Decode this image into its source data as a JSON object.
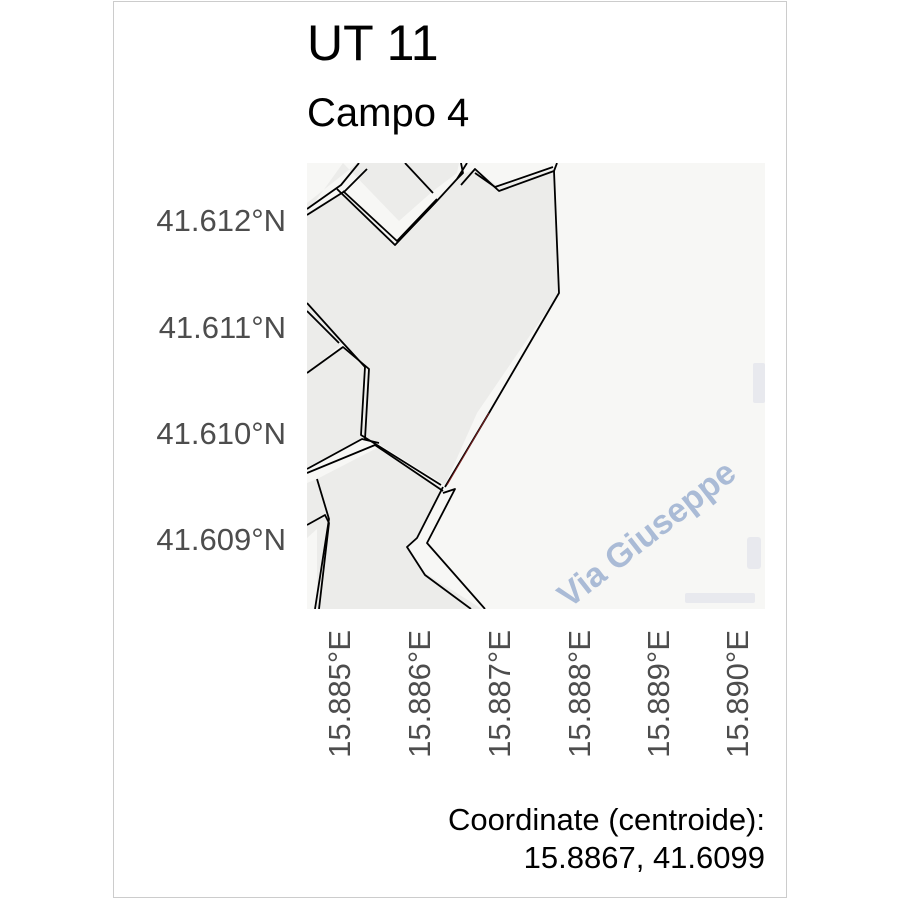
{
  "map": {
    "title": "UT 11",
    "subtitle": "Campo 4",
    "y_ticks": [
      "41.612°N",
      "41.611°N",
      "41.610°N",
      "41.609°N"
    ],
    "x_ticks": [
      "15.885°E",
      "15.886°E",
      "15.887°E",
      "15.888°E",
      "15.889°E",
      "15.890°E"
    ],
    "street_label": "Via Giuseppe",
    "caption_line1": "Coordinate (centroide):",
    "caption_line2": "15.8867, 41.6099",
    "colors": {
      "parcel_fill": "#ececea",
      "background_tile": "#f7f7f5",
      "boundary": "#000000",
      "street_label": "#aabbd6",
      "tick_text": "#4d4d4d"
    }
  }
}
